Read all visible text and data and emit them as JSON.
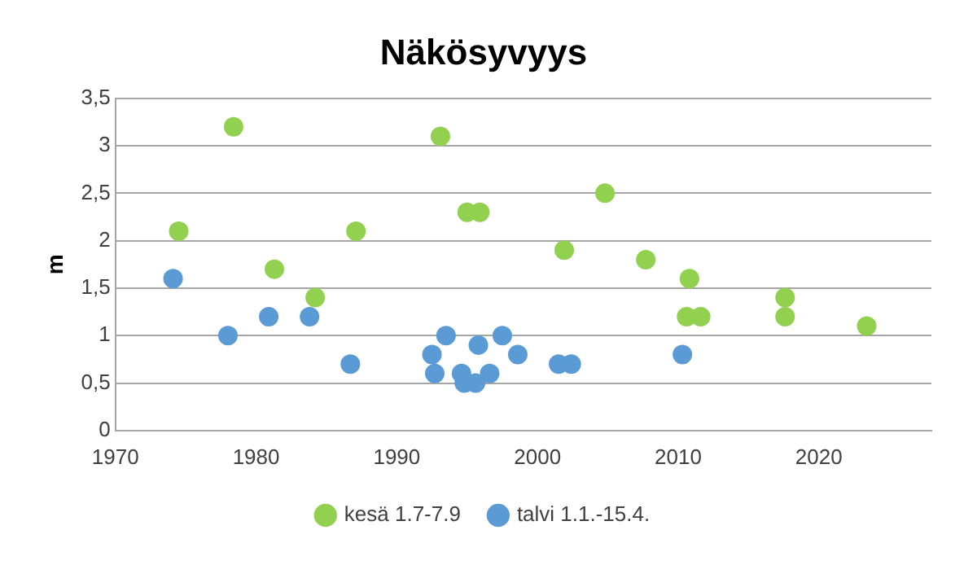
{
  "chart_data": {
    "type": "scatter",
    "title": "Näkösyvyys",
    "ylabel": "m",
    "xlim": [
      1970,
      2028
    ],
    "xticks": [
      1970,
      1980,
      1990,
      2000,
      2010,
      2020
    ],
    "ylim": [
      0,
      3.5
    ],
    "yticks": [
      0,
      {
        "value": 0.5,
        "label": "0,5"
      },
      1,
      {
        "value": 1.5,
        "label": "1,5"
      },
      2,
      {
        "value": 2.5,
        "label": "2,5"
      },
      3,
      {
        "value": 3.5,
        "label": "3,5"
      }
    ],
    "grid": "y",
    "legend": "bottom",
    "marker": "circle",
    "series": [
      {
        "name": "kesä 1.7-7.9",
        "color": "#92d050",
        "x": [
          1974.5,
          1978.4,
          1981.3,
          1984.2,
          1987.1,
          1993.1,
          1995.0,
          1995.9,
          2001.9,
          2004.8,
          2007.7,
          2010.8,
          2010.6,
          2011.6,
          2017.6,
          2017.6,
          2023.4
        ],
        "values": [
          2.1,
          3.2,
          1.7,
          1.4,
          2.1,
          3.1,
          2.3,
          2.3,
          1.9,
          2.5,
          1.8,
          1.6,
          1.2,
          1.2,
          1.4,
          1.2,
          1.1
        ]
      },
      {
        "name": "talvi 1.1.-15.4.",
        "color": "#5b9bd5",
        "x": [
          1974.1,
          1978.0,
          1980.9,
          1983.8,
          1986.7,
          1992.5,
          1992.7,
          1993.5,
          1994.6,
          1994.8,
          1995.6,
          1995.8,
          1996.6,
          1997.5,
          1998.6,
          2001.5,
          2002.4,
          2010.3
        ],
        "values": [
          1.6,
          1.0,
          1.2,
          1.2,
          0.7,
          0.8,
          0.6,
          1.0,
          0.6,
          0.5,
          0.5,
          0.9,
          0.6,
          1.0,
          0.8,
          0.7,
          0.7,
          0.8
        ]
      }
    ]
  }
}
